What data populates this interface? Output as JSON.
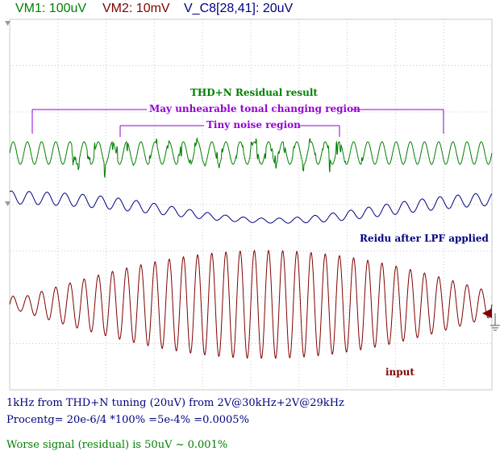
{
  "header": {
    "vm1": "VM1: 100uV",
    "vm2": "VM2: 10mV",
    "vc8": "V_C8[28,41]: 20uV"
  },
  "annotations": {
    "thd_title": "THD+N Residual result",
    "tonal_region": "May unhearable tonal changing region",
    "noise_region": "Tiny noise region",
    "lpf_label": "Reidu after  LPF applied",
    "input_label": "input"
  },
  "footer": {
    "line1": "1kHz from THD+N tuning (20uV) from 2V@30kHz+2V@29kHz",
    "line2": "Procentg= 20e-6/4 *100% =5e-4% =0.0005%",
    "line3": "Worse signal (residual) is 50uV ~ 0.001%"
  },
  "colors": {
    "background": "#ffffff",
    "grid": "#c8c8c8",
    "residual": "#008000",
    "lpf": "#000080",
    "input": "#800000",
    "region_marker": "#9400d3",
    "footer_text": "#000080",
    "footer_highlight": "#008000",
    "header_vm1": "#008000",
    "header_vm2": "#800000",
    "header_vc8": "#000080"
  },
  "chart_data": {
    "type": "line",
    "title": "",
    "xlabel": "",
    "ylabel": "",
    "grid": true,
    "divisions": {
      "x": 10,
      "y": 8
    },
    "series": [
      {
        "name": "VM1",
        "scale": "100uV",
        "cycles": 34,
        "envelope": "constant with spiky noise in middle region"
      },
      {
        "name": "V_C8[28,41]",
        "scale": "20uV",
        "cycles": 27,
        "envelope": "dips toward center"
      },
      {
        "name": "VM2",
        "scale": "10mV",
        "cycles": 34,
        "envelope": "beat: small at edges, large in center"
      }
    ]
  }
}
